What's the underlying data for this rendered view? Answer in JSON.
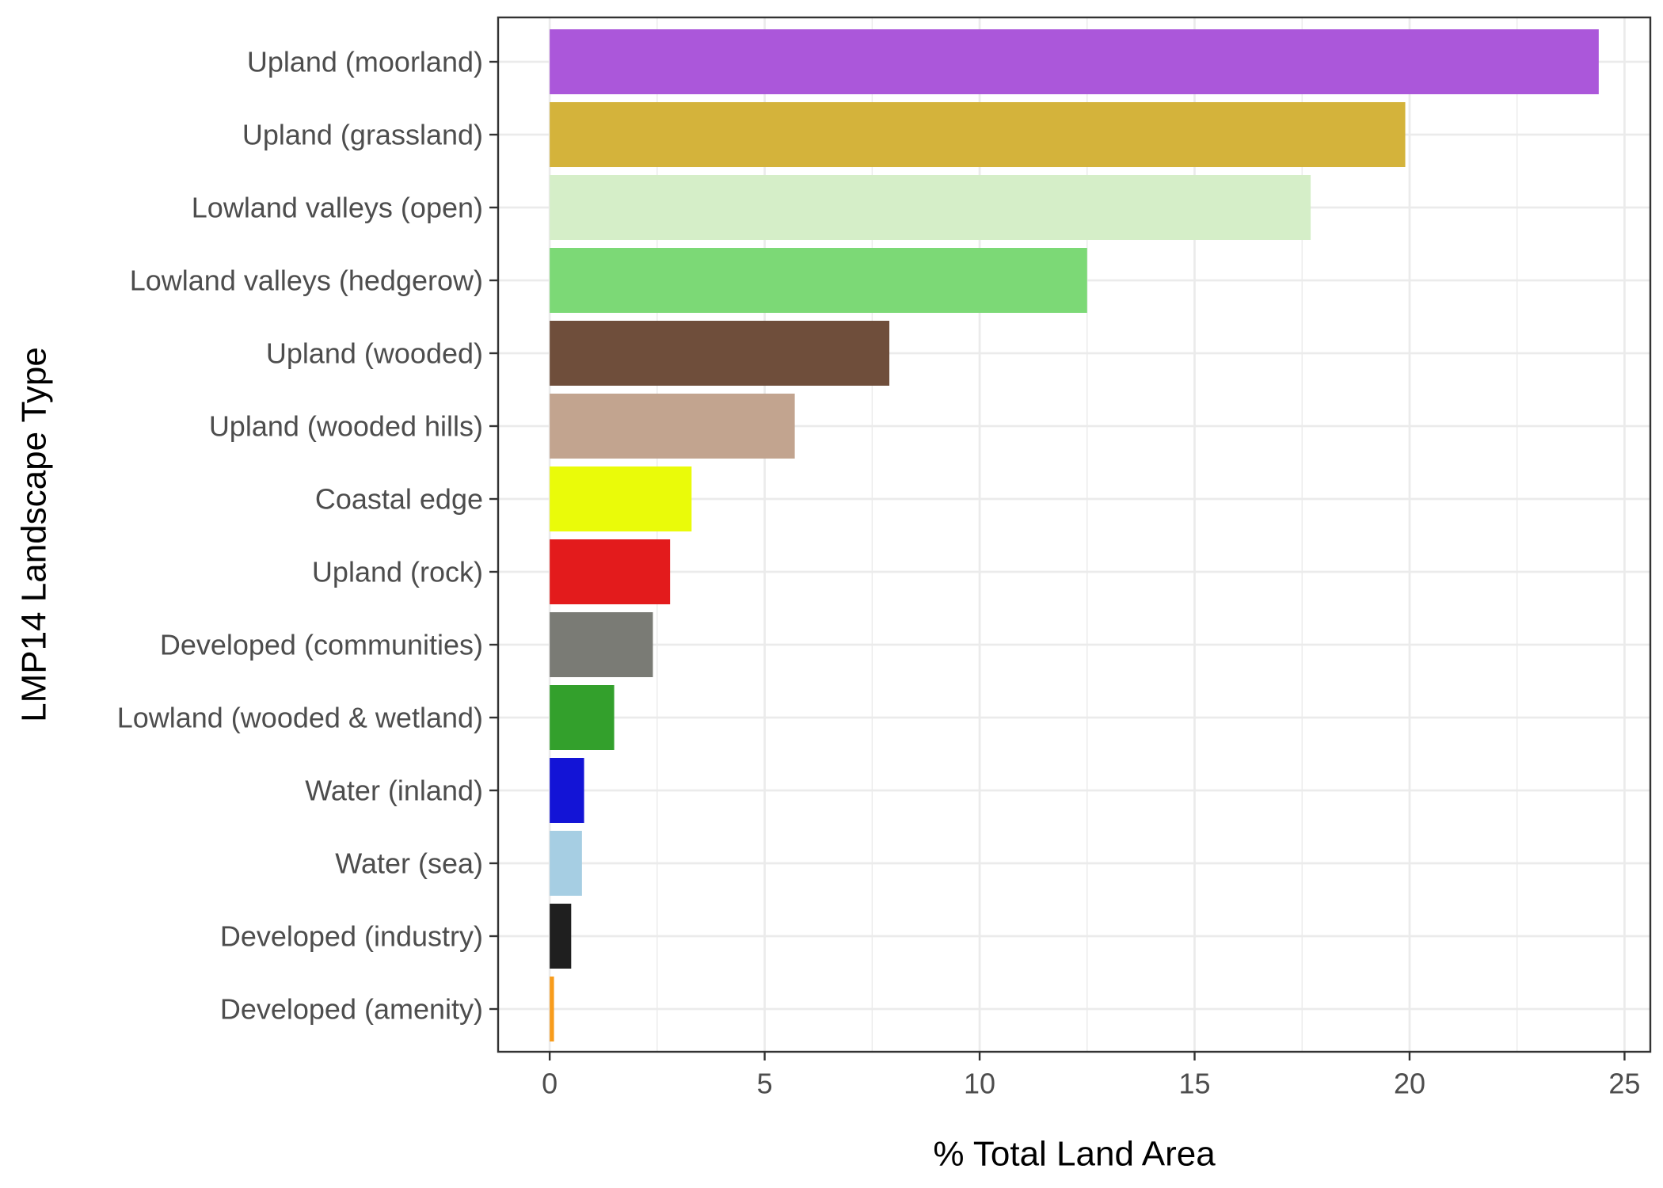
{
  "chart_data": {
    "type": "bar",
    "orientation": "horizontal",
    "xlabel": "% Total Land Area",
    "ylabel": "LMP14 Landscape Type",
    "xlim": [
      -1.2,
      25.6
    ],
    "xticks": [
      0,
      5,
      10,
      15,
      20,
      25
    ],
    "xtick_labels": [
      "0",
      "5",
      "10",
      "15",
      "20",
      "25"
    ],
    "grid": true,
    "legend": "none",
    "categories": [
      "Upland (moorland)",
      "Upland (grassland)",
      "Lowland valleys (open)",
      "Lowland valleys (hedgerow)",
      "Upland (wooded)",
      "Upland (wooded hills)",
      "Coastal edge",
      "Upland (rock)",
      "Developed (communities)",
      "Lowland (wooded & wetland)",
      "Water (inland)",
      "Water (sea)",
      "Developed (industry)",
      "Developed (amenity)"
    ],
    "values": [
      24.4,
      19.9,
      17.7,
      12.5,
      7.9,
      5.7,
      3.3,
      2.8,
      2.4,
      1.5,
      0.8,
      0.75,
      0.5,
      0.1
    ],
    "colors": [
      "#ab57da",
      "#d4b33b",
      "#d5eec8",
      "#7cd976",
      "#6f4e3b",
      "#c2a48f",
      "#eafb09",
      "#e31b1c",
      "#7a7b75",
      "#33a02c",
      "#1314d6",
      "#a6cee3",
      "#1f1f1f",
      "#f89c1c"
    ]
  }
}
